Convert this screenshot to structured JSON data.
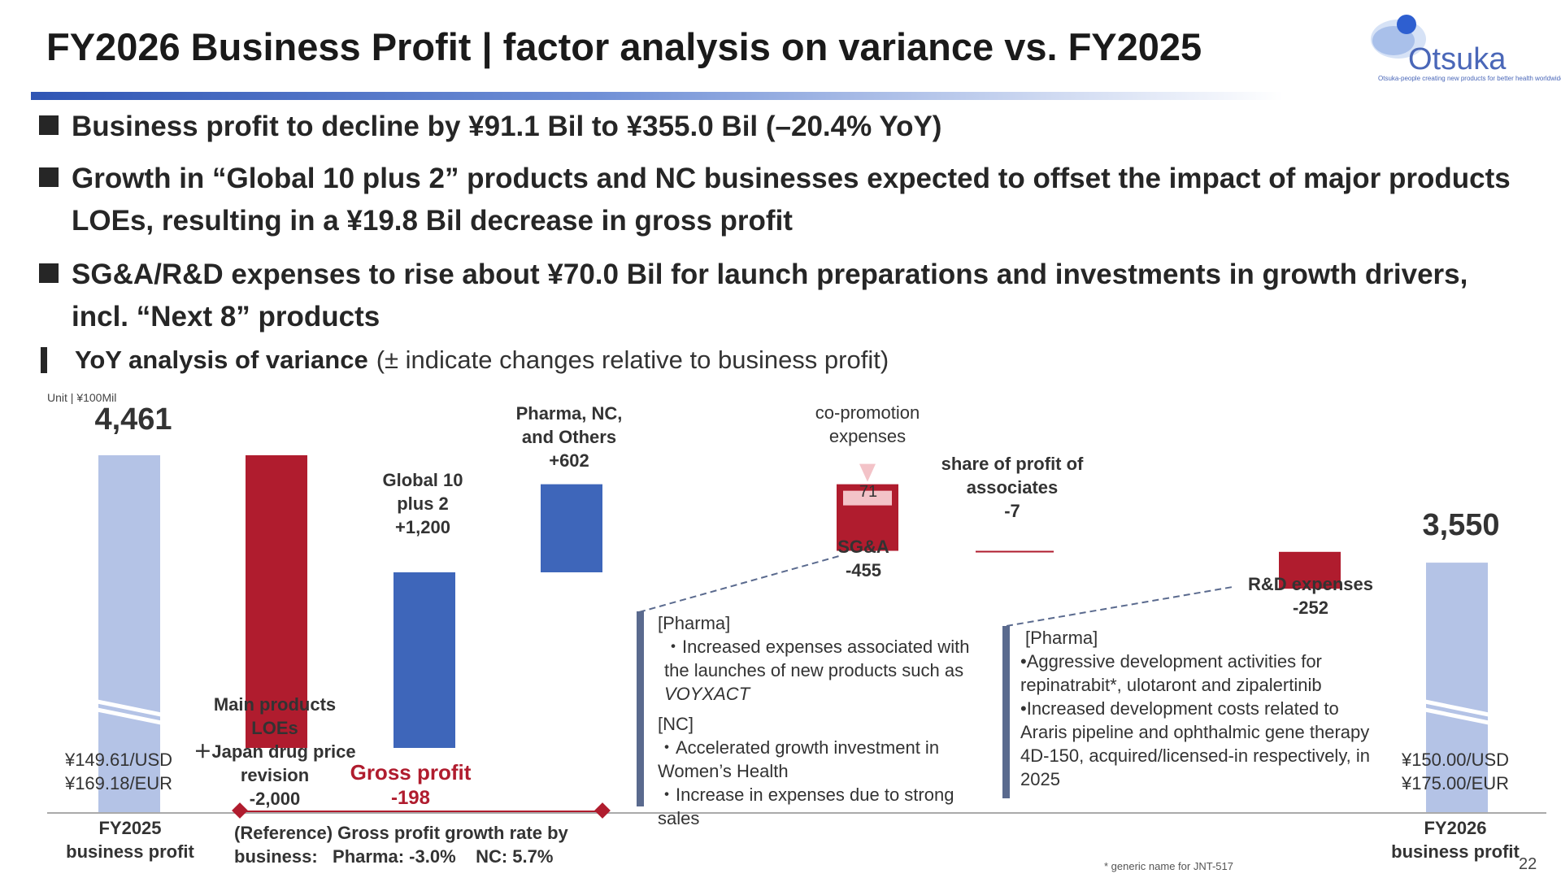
{
  "title": "FY2026 Business Profit | factor analysis on variance vs. FY2025",
  "logo": {
    "word": "Otsuka",
    "tagline": "Otsuka-people creating new products for better health worldwide"
  },
  "bullets": [
    "Business profit to decline by ¥91.1 Bil to ¥355.0 Bil (–20.4% YoY)",
    "Growth in “Global 10 plus 2” products and NC businesses expected to offset the impact of major products LOEs, resulting in a ¥19.8 Bil decrease in gross profit",
    "SG&A/R&D expenses to rise about ¥70.0 Bil for launch preparations and investments in growth drivers, incl. “Next 8” products"
  ],
  "subheading": {
    "bold": "YoY analysis of variance",
    "rest": "(± indicate changes relative to business profit)"
  },
  "unit": "Unit | ¥100Mil",
  "chart_data": {
    "type": "bar",
    "subtype": "waterfall",
    "unit": "¥100Mil",
    "categories": [
      "FY2025 business profit",
      "Main products LOEs +Japan drug price revision",
      "Global 10 plus 2",
      "Pharma, NC, and Others",
      "SG&A",
      "share of profit of associates",
      "R&D expenses",
      "FY2026 business profit"
    ],
    "values": [
      4461,
      -2000,
      1200,
      602,
      -455,
      -7,
      -252,
      3550
    ],
    "colors": {
      "total": "#b4c3e6",
      "increase": "#3e66ba",
      "decrease": "#b01c2e",
      "copromo": "#f3c3c8"
    },
    "labels": {
      "start_value": "4,461",
      "end_value": "3,550",
      "start_cat": "FY2025\nbusiness profit",
      "end_cat": "FY2026\nbusiness profit",
      "loe": "Main products\nLOEs\n＋Japan drug price\nrevision\n-2,000",
      "g10": "Global 10\nplus 2\n+1,200",
      "pharma": "Pharma, NC,\nand Others\n+602",
      "sga": "SG&A\n-455",
      "copromo": "co-promotion\nexpenses",
      "copromo_value": "71",
      "assoc": "share of profit of\nassociates\n-7",
      "rd": "R&D expenses\n-252"
    },
    "fx_start": "¥149.61/USD\n¥169.18/EUR",
    "fx_end": "¥150.00/USD\n¥175.00/EUR",
    "gross_profit": {
      "label": "Gross profit",
      "value": "-198"
    },
    "reference": "(Reference) Gross profit growth rate by\nbusiness:   Pharma: -3.0%    NC: 5.7%"
  },
  "sga_box": [
    "[Pharma]",
    "・Increased expenses associated with the launches of new products such as <i>VOYXACT</i>",
    "[NC]",
    "・Accelerated growth investment in Women’s Health",
    "・Increase in expenses due to strong sales"
  ],
  "rd_box": [
    "[Pharma]",
    "•Aggressive development activities for repinatrabit*, ulotaront and zipalertinib",
    "•Increased development costs related to Araris pipeline and ophthalmic gene therapy 4D-150, acquired/licensed-in respectively, in 2025"
  ],
  "footnote": "* generic name for JNT-517",
  "page_number": "22"
}
